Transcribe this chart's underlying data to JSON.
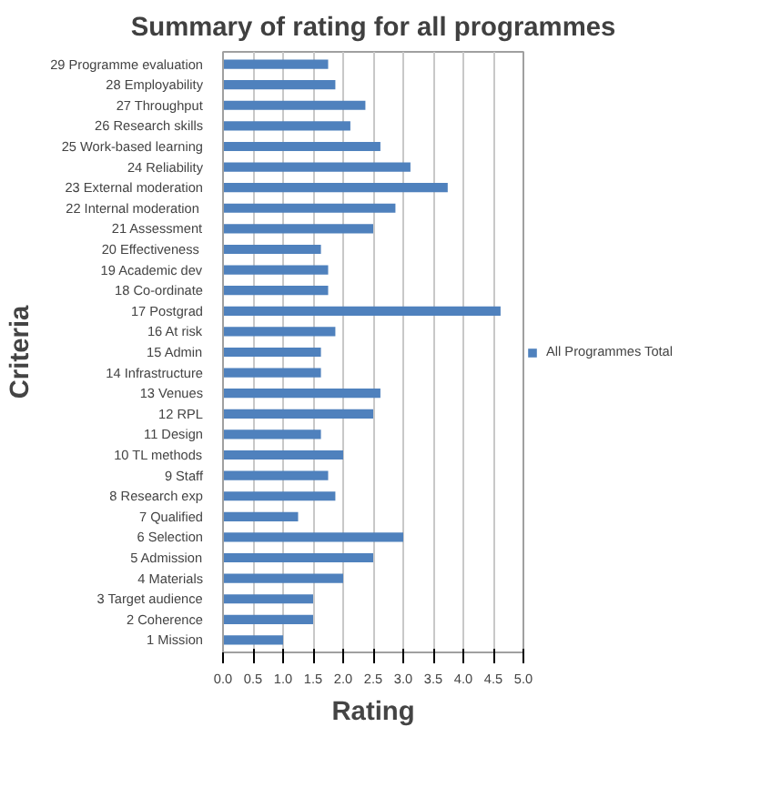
{
  "chart_data": {
    "type": "bar",
    "orientation": "horizontal",
    "title": "Summary of rating for all programmes",
    "xlabel": "Rating",
    "ylabel": "Criteria",
    "categories": [
      "29 Programme evaluation",
      "28 Employability",
      "27 Throughput",
      "26 Research skills",
      "25 Work-based learning",
      "24 Reliability",
      "23 External moderation",
      "22  Internal moderation",
      "21 Assessment",
      "20  Effectiveness",
      "19 Academic dev",
      "18 Co-ordinate",
      "17 Postgrad",
      "16 At risk",
      "15 Admin",
      "14 Infrastructure",
      "13 Venues",
      "12 RPL",
      "11 Design",
      "10 TL methods",
      "9 Staff",
      "8 Research exp",
      "7 Qualified",
      "6 Selection",
      "5 Admission",
      "4 Materials",
      "3 Target audience",
      "2 Coherence",
      "1 Mission"
    ],
    "series": [
      {
        "name": "All Programmes Total",
        "color": "#4f81bd",
        "values": [
          1.75,
          1.87,
          2.37,
          2.12,
          2.62,
          3.12,
          3.74,
          2.87,
          2.5,
          1.63,
          1.75,
          1.75,
          4.62,
          1.87,
          1.63,
          1.63,
          2.62,
          2.5,
          1.63,
          2.0,
          1.75,
          1.87,
          1.25,
          3.0,
          2.5,
          2.0,
          1.5,
          1.5,
          1.0
        ]
      }
    ],
    "xlim": [
      0,
      5
    ],
    "xticks": [
      {
        "value": 0,
        "label": "0.0"
      },
      {
        "value": 0.5,
        "label": "0.5"
      },
      {
        "value": 1,
        "label": "1.0"
      },
      {
        "value": 1.5,
        "label": "1.5"
      },
      {
        "value": 2,
        "label": "2.0"
      },
      {
        "value": 2.5,
        "label": "2.5"
      },
      {
        "value": 3,
        "label": "3.0"
      },
      {
        "value": 3.5,
        "label": "3.5"
      },
      {
        "value": 4,
        "label": "4.0"
      },
      {
        "value": 4.5,
        "label": "4.5"
      },
      {
        "value": 5,
        "label": "5.0"
      }
    ],
    "grid": "x",
    "legend": "right"
  }
}
